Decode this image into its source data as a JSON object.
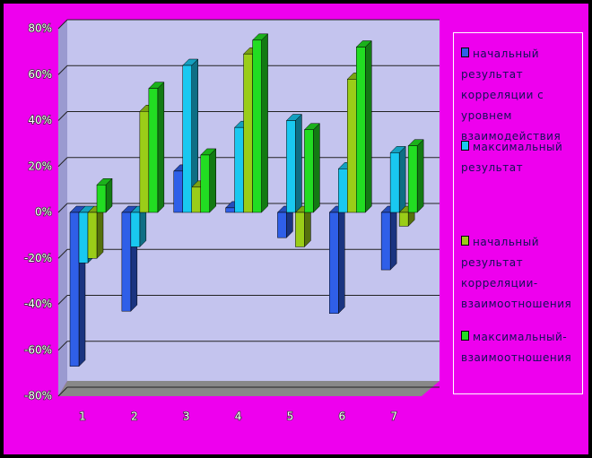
{
  "chart_data": {
    "type": "bar3d",
    "categories": [
      "1",
      "2",
      "3",
      "4",
      "5",
      "6",
      "7"
    ],
    "series": [
      {
        "name": "начальный результат корреляции с уровнем взаимодействия",
        "color": "#2f5fe8",
        "values": [
          -67,
          -43,
          18,
          2,
          -11,
          -44,
          -25
        ]
      },
      {
        "name": "максимальный результат",
        "color": "#19c8f0",
        "values": [
          -22,
          -15,
          64,
          37,
          40,
          19,
          26
        ]
      },
      {
        "name": "начальный результат корреляции-взаимоотношения",
        "color": "#9acd18",
        "values": [
          -20,
          44,
          11,
          69,
          -15,
          58,
          -6
        ]
      },
      {
        "name": "максимальный-взаимоотношения",
        "color": "#22dd22",
        "values": [
          12,
          54,
          25,
          75,
          36,
          72,
          29
        ]
      }
    ],
    "ylim": [
      -80,
      80
    ],
    "yticks": [
      {
        "value": -80,
        "label": "-80%"
      },
      {
        "value": -60,
        "label": "-60%"
      },
      {
        "value": -40,
        "label": "-40%"
      },
      {
        "value": -20,
        "label": "-20%"
      },
      {
        "value": 0,
        "label": "0%"
      },
      {
        "value": 20,
        "label": "20%"
      },
      {
        "value": 40,
        "label": "40%"
      },
      {
        "value": 60,
        "label": "60%"
      },
      {
        "value": 80,
        "label": "80%"
      }
    ],
    "grid": true
  }
}
